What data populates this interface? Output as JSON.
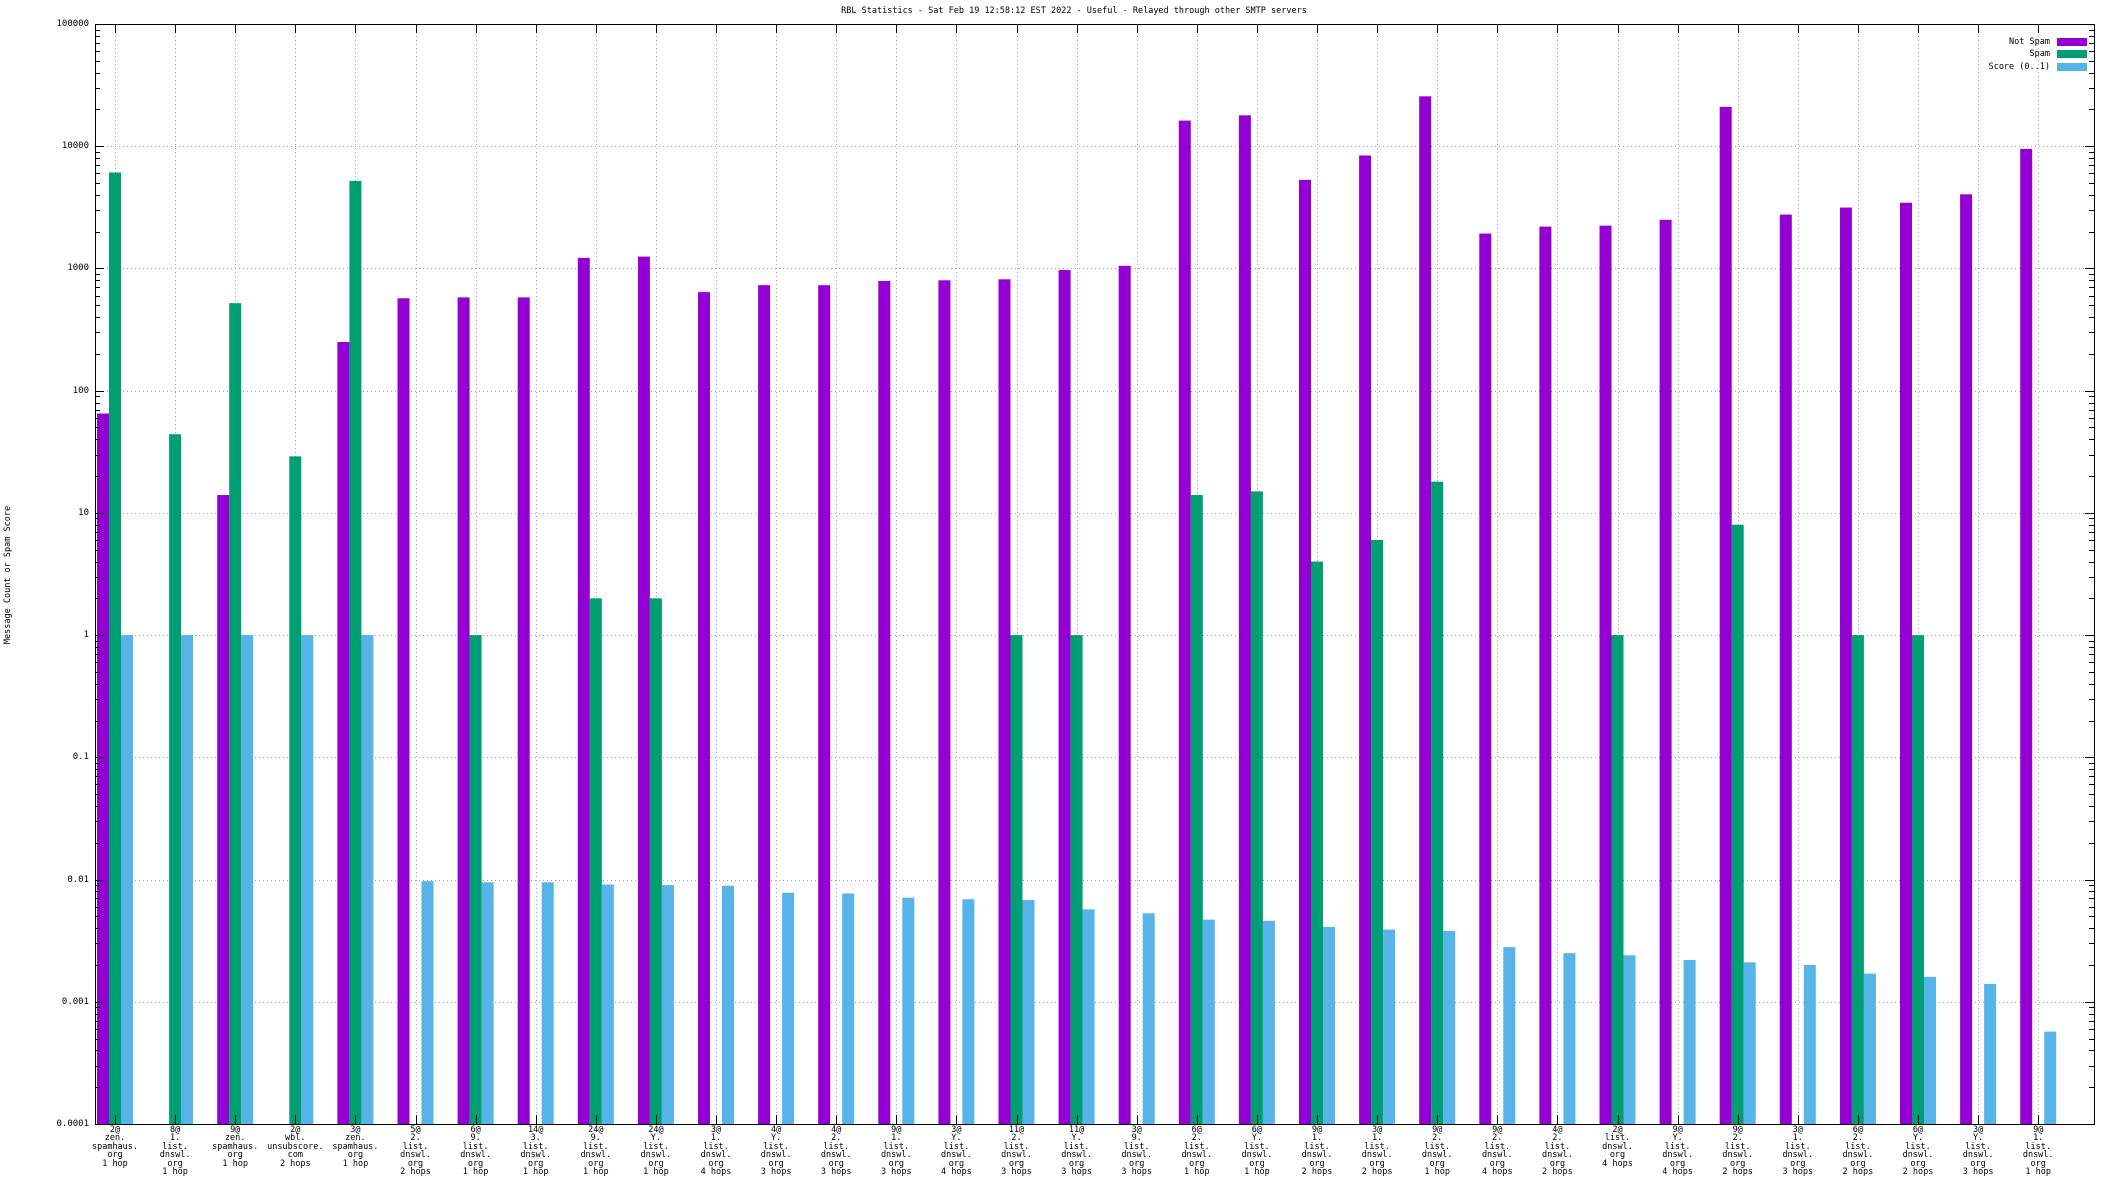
{
  "chart_data": {
    "type": "bar",
    "title": "RBL Statistics - Sat Feb 19 12:58:12 EST 2022 - Useful - Relayed through other SMTP servers",
    "ylabel": "Message Count or Spam Score",
    "yscale": "log",
    "ylim": [
      0.0001,
      100000
    ],
    "yticks": [
      "100000",
      "10000",
      "1000",
      "100",
      "10",
      "1",
      "0.1",
      "0.01",
      "0.001",
      "0.0001"
    ],
    "grid": true,
    "legend_position": "top-right",
    "categories": [
      "2@\nzen.\nspamhaus.\norg\n1 hop",
      "8@\n1.\nlist.\ndnswl.\norg\n1 hop",
      "9@\nzen.\nspamhaus.\norg\n1 hop",
      "2@\nwbl.\nunsubscore.\ncom\n2 hops",
      "3@\nzen.\nspamhaus.\norg\n1 hop",
      "5@\n2.\nlist.\ndnswl.\norg\n2 hops",
      "6@\n9.\nlist.\ndnswl.\norg\n1 hop",
      "14@\n3.\nlist.\ndnswl.\norg\n1 hop",
      "24@\n9.\nlist.\ndnswl.\norg\n1 hop",
      "24@\nY.\nlist.\ndnswl.\norg\n1 hop",
      "3@\n1.\nlist.\ndnswl.\norg\n4 hops",
      "4@\nY.\nlist.\ndnswl.\norg\n3 hops",
      "4@\n2.\nlist.\ndnswl.\norg\n3 hops",
      "9@\n1.\nlist.\ndnswl.\norg\n3 hops",
      "3@\nY.\nlist.\ndnswl.\norg\n4 hops",
      "11@\n2.\nlist.\ndnswl.\norg\n3 hops",
      "11@\nY.\nlist.\ndnswl.\norg\n3 hops",
      "3@\n9.\nlist.\ndnswl.\norg\n3 hops",
      "6@\n2.\nlist.\ndnswl.\norg\n1 hop",
      "6@\nY.\nlist.\ndnswl.\norg\n1 hop",
      "9@\n1.\nlist.\ndnswl.\norg\n2 hops",
      "3@\n1.\nlist.\ndnswl.\norg\n2 hops",
      "9@\n2.\nlist.\ndnswl.\norg\n1 hop",
      "9@\n2.\nlist.\ndnswl.\norg\n4 hops",
      "4@\n2.\nlist.\ndnswl.\norg\n2 hops",
      "2@\nlist.\ndnswl.\norg\n4 hops",
      "9@\nY.\nlist.\ndnswl.\norg\n4 hops",
      "9@\n2.\nlist.\ndnswl.\norg\n2 hops",
      "3@\n1.\nlist.\ndnswl.\norg\n3 hops",
      "6@\n2.\nlist.\ndnswl.\norg\n2 hops",
      "6@\nY.\nlist.\ndnswl.\norg\n2 hops",
      "3@\nY.\nlist.\ndnswl.\norg\n3 hops",
      "9@\n1.\nlist.\ndnswl.\norg\n1 hop"
    ],
    "series": [
      {
        "name": "Not Spam",
        "color": "#9400d3",
        "values": [
          65,
          0,
          14,
          0,
          250,
          570,
          580,
          580,
          1220,
          1250,
          640,
          730,
          730,
          790,
          800,
          815,
          970,
          1050,
          16200,
          17900,
          5300,
          8400,
          25600,
          1930,
          2200,
          2240,
          2500,
          21000,
          2760,
          3150,
          3450,
          4040,
          9500
        ]
      },
      {
        "name": "Spam",
        "color": "#009e73",
        "values": [
          6100,
          44,
          520,
          29,
          5200,
          0,
          1,
          0,
          2,
          2,
          0,
          0,
          0,
          0,
          0,
          1,
          1,
          0,
          14,
          15,
          4,
          6,
          18,
          0,
          0,
          1,
          0,
          8,
          0,
          1,
          1,
          0,
          0
        ]
      },
      {
        "name": "Score (0..1)",
        "color": "#56b4e9",
        "values": [
          1,
          1,
          1,
          1,
          1,
          0.0097,
          0.0095,
          0.0095,
          0.0091,
          0.009,
          0.0089,
          0.0078,
          0.0077,
          0.0071,
          0.0069,
          0.0068,
          0.0057,
          0.0053,
          0.0047,
          0.0046,
          0.0041,
          0.0039,
          0.0038,
          0.0028,
          0.0025,
          0.0024,
          0.0022,
          0.0021,
          0.002,
          0.0017,
          0.0016,
          0.0014,
          0.00057
        ]
      }
    ]
  }
}
